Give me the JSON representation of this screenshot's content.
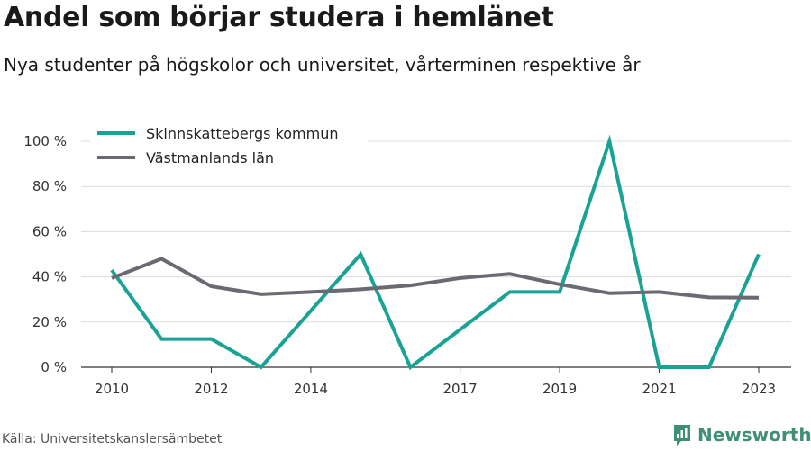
{
  "header": {
    "title": "Andel som börjar studera i hemlänet",
    "subtitle": "Nya studenter på högskolor och universitet, vårterminen respektive år"
  },
  "footer": {
    "source": "Källa: Universitetskanslersämbetet",
    "brand": "Newsworthy"
  },
  "colors": {
    "skinnskatteberg": "#1aa395",
    "vastmanland": "#6b6a72",
    "grid": "#dcdcdc",
    "axis": "#333333",
    "brand": "#3f8f77"
  },
  "chart_data": {
    "type": "line",
    "title": "Andel som börjar studera i hemlänet",
    "subtitle": "Nya studenter på högskolor och universitet, vårterminen respektive år",
    "x": [
      2010,
      2011,
      2012,
      2013,
      2014,
      2015,
      2016,
      2017,
      2018,
      2019,
      2020,
      2021,
      2022,
      2023
    ],
    "x_ticks": [
      2010,
      2012,
      2014,
      2017,
      2019,
      2021,
      2023
    ],
    "y_ticks": [
      0,
      20,
      40,
      60,
      80,
      100
    ],
    "y_tick_labels": [
      "0 %",
      "20 %",
      "40 %",
      "60 %",
      "80 %",
      "100 %"
    ],
    "ylim": [
      0,
      100
    ],
    "xlim": [
      2010,
      2023
    ],
    "grid": true,
    "legend_position": "top-left",
    "series": [
      {
        "name": "Skinnskattebergs kommun",
        "color": "#1aa395",
        "values": [
          43,
          12.5,
          12.5,
          0,
          25,
          50,
          0,
          16.7,
          33.3,
          33.3,
          100,
          0,
          0,
          50
        ]
      },
      {
        "name": "Västmanlands län",
        "color": "#6b6a72",
        "values": [
          39.5,
          48,
          35.8,
          32.3,
          33.3,
          34.5,
          36.2,
          39.5,
          41.3,
          36.7,
          32.8,
          33.3,
          30.9,
          30.8
        ]
      }
    ]
  }
}
